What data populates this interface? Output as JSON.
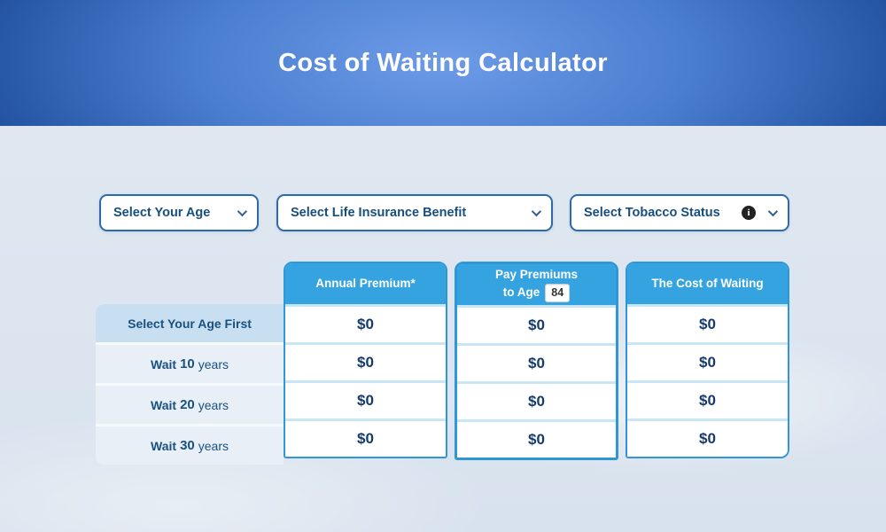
{
  "header": {
    "title": "Cost of Waiting Calculator"
  },
  "filters": {
    "age": {
      "label": "Select Your Age"
    },
    "benefit": {
      "label": "Select Life Insurance Benefit"
    },
    "tobacco": {
      "label": "Select Tobacco Status",
      "info_glyph": "i"
    }
  },
  "table": {
    "row_labels": {
      "first": "Select Your Age First",
      "wait_prefix": "Wait",
      "wait_suffix": "years",
      "wait_years": [
        "10",
        "20",
        "30"
      ]
    },
    "columns": [
      {
        "header": "Annual Premium*",
        "cells": [
          "$0",
          "$0",
          "$0",
          "$0"
        ]
      },
      {
        "header_line1": "Pay Premiums",
        "header_line2": "to Age",
        "age": "84",
        "cells": [
          "$0",
          "$0",
          "$0",
          "$0"
        ]
      },
      {
        "header": "The Cost of Waiting",
        "cells": [
          "$0",
          "$0",
          "$0",
          "$0"
        ]
      }
    ]
  },
  "colors": {
    "banner_center": "#6d9be8",
    "banner_edge": "#15428a",
    "column_header_bg": "#35a3e0",
    "column_border": "#2f96d8",
    "dropdown_border": "#2b6ca8",
    "label_text": "#195181",
    "value_text": "#163a6b",
    "first_row_bg": "#c7dff1",
    "row_bg": "#e9eff7"
  }
}
